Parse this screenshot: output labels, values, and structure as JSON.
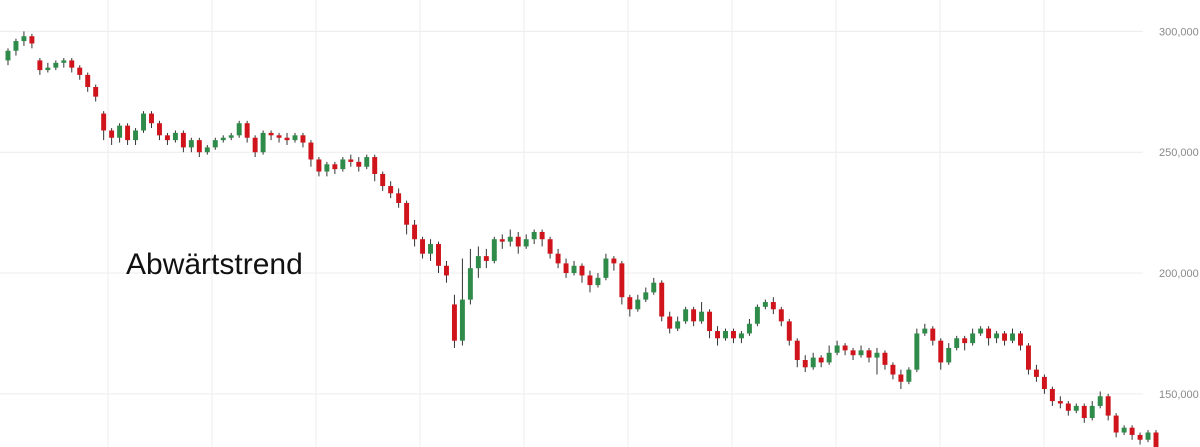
{
  "chart_data": {
    "type": "candlestick",
    "annotation": "Abwärtstrend",
    "y_axis": {
      "position": "right",
      "min": 128000,
      "max": 313000,
      "ticks": [
        300000,
        250000,
        200000,
        150000
      ],
      "tick_labels": [
        "300,000",
        "250,000",
        "200,000",
        "150,000"
      ]
    },
    "grid": true,
    "colors": {
      "up": "#2e8b4a",
      "down": "#d0141b",
      "wick": "#333333",
      "grid": "#ececec",
      "text": "#8a8a8a"
    },
    "candles": [
      [
        288000,
        292000,
        286000,
        293000
      ],
      [
        292000,
        296000,
        290000,
        297000
      ],
      [
        296000,
        298000,
        294000,
        300000
      ],
      [
        298000,
        295000,
        293000,
        299000
      ],
      [
        288000,
        284000,
        282000,
        289000
      ],
      [
        284000,
        285000,
        283000,
        287000
      ],
      [
        285000,
        287000,
        284000,
        288000
      ],
      [
        287000,
        288000,
        285000,
        289000
      ],
      [
        288000,
        285000,
        283000,
        289000
      ],
      [
        285000,
        282000,
        280000,
        286000
      ],
      [
        282000,
        277000,
        275000,
        283000
      ],
      [
        277000,
        273000,
        271000,
        278000
      ],
      [
        266000,
        259000,
        255000,
        267000
      ],
      [
        259000,
        256000,
        253000,
        260000
      ],
      [
        256000,
        261000,
        254000,
        262000
      ],
      [
        261000,
        255000,
        253000,
        262000
      ],
      [
        255000,
        259000,
        253000,
        260000
      ],
      [
        259000,
        266000,
        258000,
        267000
      ],
      [
        266000,
        262000,
        260000,
        267000
      ],
      [
        262000,
        257000,
        255000,
        263000
      ],
      [
        257000,
        255000,
        253000,
        258000
      ],
      [
        255000,
        258000,
        254000,
        259000
      ],
      [
        258000,
        252000,
        250000,
        259000
      ],
      [
        252000,
        255000,
        250000,
        256000
      ],
      [
        255000,
        250000,
        248000,
        256000
      ],
      [
        250000,
        252000,
        249000,
        253000
      ],
      [
        252000,
        255000,
        251000,
        256000
      ],
      [
        255000,
        256000,
        254000,
        257000
      ],
      [
        256000,
        257000,
        255000,
        258000
      ],
      [
        257000,
        262000,
        256000,
        263000
      ],
      [
        262000,
        256000,
        254000,
        263000
      ],
      [
        256000,
        250000,
        248000,
        257000
      ],
      [
        250000,
        258000,
        249000,
        259000
      ],
      [
        258000,
        257000,
        255000,
        259000
      ],
      [
        257000,
        256000,
        254000,
        258000
      ],
      [
        256000,
        255000,
        253000,
        258000
      ],
      [
        255000,
        257000,
        254000,
        258000
      ],
      [
        257000,
        254000,
        252000,
        258000
      ],
      [
        254000,
        247000,
        244000,
        255000
      ],
      [
        247000,
        242000,
        240000,
        248000
      ],
      [
        242000,
        245000,
        240000,
        246000
      ],
      [
        245000,
        243000,
        241000,
        246000
      ],
      [
        243000,
        247000,
        242000,
        248000
      ],
      [
        247000,
        246000,
        244000,
        249000
      ],
      [
        246000,
        244000,
        242000,
        248000
      ],
      [
        244000,
        248000,
        243000,
        249000
      ],
      [
        248000,
        241000,
        238000,
        249000
      ],
      [
        241000,
        236000,
        234000,
        242000
      ],
      [
        236000,
        233000,
        231000,
        238000
      ],
      [
        233000,
        229000,
        227000,
        235000
      ],
      [
        229000,
        220000,
        216000,
        230000
      ],
      [
        220000,
        214000,
        211000,
        222000
      ],
      [
        214000,
        208000,
        206000,
        215000
      ],
      [
        208000,
        212000,
        205000,
        214000
      ],
      [
        212000,
        203000,
        200000,
        213000
      ],
      [
        203000,
        199000,
        196000,
        205000
      ],
      [
        187000,
        172000,
        169000,
        191000
      ],
      [
        172000,
        189000,
        170000,
        206000
      ],
      [
        189000,
        202000,
        187000,
        210000
      ],
      [
        202000,
        207000,
        198000,
        211000
      ],
      [
        207000,
        205000,
        202000,
        210000
      ],
      [
        205000,
        214000,
        204000,
        215000
      ],
      [
        214000,
        213000,
        210000,
        216000
      ],
      [
        213000,
        215000,
        211000,
        218000
      ],
      [
        215000,
        211000,
        208000,
        217000
      ],
      [
        211000,
        214000,
        210000,
        216000
      ],
      [
        214000,
        217000,
        212000,
        218000
      ],
      [
        217000,
        214000,
        211000,
        218000
      ],
      [
        214000,
        208000,
        206000,
        215000
      ],
      [
        208000,
        204000,
        202000,
        210000
      ],
      [
        204000,
        200000,
        198000,
        206000
      ],
      [
        200000,
        203000,
        199000,
        205000
      ],
      [
        203000,
        199000,
        196000,
        204000
      ],
      [
        199000,
        195000,
        192000,
        201000
      ],
      [
        195000,
        198000,
        194000,
        200000
      ],
      [
        198000,
        206000,
        197000,
        208000
      ],
      [
        206000,
        204000,
        201000,
        207000
      ],
      [
        204000,
        190000,
        187000,
        205000
      ],
      [
        190000,
        185000,
        182000,
        191000
      ],
      [
        185000,
        189000,
        184000,
        191000
      ],
      [
        189000,
        192000,
        188000,
        194000
      ],
      [
        192000,
        196000,
        191000,
        198000
      ],
      [
        196000,
        182000,
        180000,
        197000
      ],
      [
        182000,
        177000,
        175000,
        184000
      ],
      [
        177000,
        180000,
        176000,
        182000
      ],
      [
        180000,
        185000,
        179000,
        186000
      ],
      [
        185000,
        180000,
        178000,
        186000
      ],
      [
        180000,
        184000,
        179000,
        188000
      ],
      [
        184000,
        176000,
        173000,
        185000
      ],
      [
        176000,
        173000,
        170000,
        178000
      ],
      [
        173000,
        176000,
        172000,
        177000
      ],
      [
        176000,
        173000,
        171000,
        177000
      ],
      [
        173000,
        175000,
        171000,
        176000
      ],
      [
        175000,
        179000,
        174000,
        181000
      ],
      [
        179000,
        186000,
        178000,
        187000
      ],
      [
        186000,
        188000,
        185000,
        189000
      ],
      [
        188000,
        185000,
        183000,
        190000
      ],
      [
        185000,
        180000,
        178000,
        186000
      ],
      [
        180000,
        172000,
        170000,
        181000
      ],
      [
        172000,
        164000,
        161000,
        173000
      ],
      [
        164000,
        161000,
        159000,
        166000
      ],
      [
        161000,
        165000,
        160000,
        167000
      ],
      [
        165000,
        163000,
        161000,
        166000
      ],
      [
        163000,
        167000,
        162000,
        170000
      ],
      [
        167000,
        170000,
        166000,
        172000
      ],
      [
        170000,
        168000,
        166000,
        171000
      ],
      [
        168000,
        166000,
        164000,
        169000
      ],
      [
        166000,
        168000,
        165000,
        170000
      ],
      [
        168000,
        165000,
        163000,
        169000
      ],
      [
        165000,
        167000,
        158000,
        169000
      ],
      [
        167000,
        162000,
        160000,
        168000
      ],
      [
        162000,
        158000,
        156000,
        163000
      ],
      [
        158000,
        155000,
        152000,
        160000
      ],
      [
        155000,
        160000,
        154000,
        161000
      ],
      [
        160000,
        175000,
        159000,
        177000
      ],
      [
        175000,
        177000,
        174000,
        179000
      ],
      [
        177000,
        172000,
        170000,
        178000
      ],
      [
        172000,
        163000,
        160000,
        173000
      ],
      [
        163000,
        169000,
        162000,
        171000
      ],
      [
        169000,
        173000,
        168000,
        174000
      ],
      [
        173000,
        171000,
        168000,
        174000
      ],
      [
        171000,
        175000,
        170000,
        177000
      ],
      [
        175000,
        177000,
        174000,
        178000
      ],
      [
        177000,
        173000,
        170000,
        178000
      ],
      [
        173000,
        175000,
        171000,
        176000
      ],
      [
        175000,
        172000,
        170000,
        176000
      ],
      [
        172000,
        175000,
        171000,
        177000
      ],
      [
        175000,
        170000,
        168000,
        176000
      ],
      [
        170000,
        160000,
        158000,
        171000
      ],
      [
        160000,
        157000,
        155000,
        162000
      ],
      [
        157000,
        152000,
        150000,
        158000
      ],
      [
        152000,
        147000,
        145000,
        153000
      ],
      [
        147000,
        146000,
        144000,
        149000
      ],
      [
        146000,
        143000,
        141000,
        147000
      ],
      [
        143000,
        145000,
        142000,
        146000
      ],
      [
        145000,
        140000,
        138000,
        146000
      ],
      [
        140000,
        145000,
        139000,
        147000
      ],
      [
        145000,
        149000,
        144000,
        151000
      ],
      [
        149000,
        141000,
        139000,
        150000
      ],
      [
        141000,
        134000,
        132000,
        142000
      ],
      [
        134000,
        136000,
        133000,
        137000
      ],
      [
        136000,
        133000,
        131000,
        137000
      ],
      [
        133000,
        131000,
        129000,
        134000
      ],
      [
        131000,
        134000,
        130000,
        135000
      ],
      [
        134000,
        128000,
        126000,
        135000
      ]
    ]
  }
}
